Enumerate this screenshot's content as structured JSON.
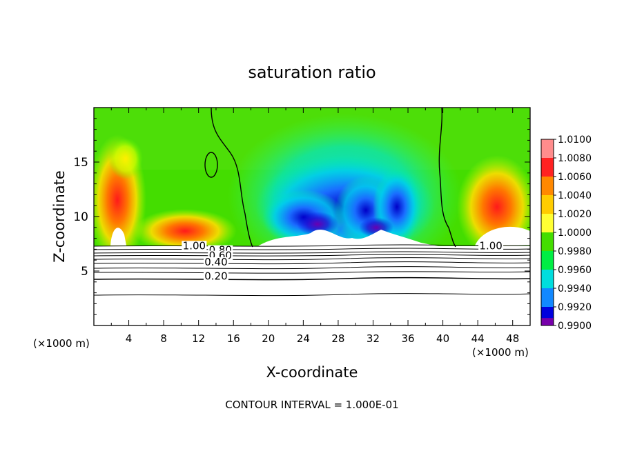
{
  "chart_data": {
    "type": "heatmap",
    "title": "saturation ratio",
    "xlabel": "X-coordinate",
    "ylabel": "Z-coordinate",
    "x_unit_left": "(×1000 m)",
    "x_unit_right": "(×1000 m)",
    "xlim": [
      0,
      50
    ],
    "ylim": [
      0,
      20
    ],
    "x_ticks": [
      "4",
      "8",
      "12",
      "16",
      "20",
      "24",
      "28",
      "32",
      "36",
      "40",
      "44",
      "48"
    ],
    "x_tick_values": [
      4,
      8,
      12,
      16,
      20,
      24,
      28,
      32,
      36,
      40,
      44,
      48
    ],
    "y_ticks": [
      "5",
      "10",
      "15"
    ],
    "y_tick_values": [
      5,
      10,
      15
    ],
    "footer": "CONTOUR INTERVAL = 1.000E-01",
    "colorbar": {
      "labels": [
        "1.0100",
        "1.0080",
        "1.0060",
        "1.0040",
        "1.0020",
        "1.0000",
        "0.9980",
        "0.9960",
        "0.9940",
        "0.9920",
        "0.9900"
      ],
      "values": [
        1.01,
        1.008,
        1.006,
        1.004,
        1.002,
        1.0,
        0.998,
        0.996,
        0.994,
        0.992,
        0.99
      ],
      "colors": [
        "#ff8c8c",
        "#ff2222",
        "#ff8800",
        "#ffcc00",
        "#ffff33",
        "#44dd00",
        "#00ee44",
        "#00dddd",
        "#1188ff",
        "#0000dd",
        "#7700aa"
      ]
    },
    "contour_labels": [
      {
        "text": "1.00",
        "x": 11.5,
        "z": 7.0
      },
      {
        "text": "0.80",
        "x": 14.5,
        "z": 6.6
      },
      {
        "text": "0.60",
        "x": 14.5,
        "z": 6.1
      },
      {
        "text": "0.40",
        "x": 14.0,
        "z": 5.5
      },
      {
        "text": "0.20",
        "x": 14.0,
        "z": 4.2
      },
      {
        "text": "1.00",
        "x": 45.5,
        "z": 7.0
      }
    ],
    "contour_levels": [
      0.2,
      0.4,
      0.6,
      0.8,
      1.0
    ],
    "cloud_top_z": 7.3
  }
}
